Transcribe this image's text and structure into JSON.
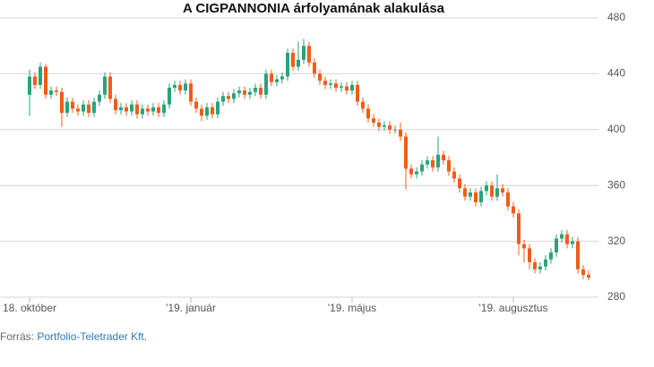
{
  "chart_data": {
    "type": "candlestick",
    "title": "A CIGPANNONIA árfolyamának alakulása",
    "xticks": [
      {
        "value": 0,
        "label": "18. október"
      },
      {
        "value": 30,
        "label": "'19. január"
      },
      {
        "value": 60,
        "label": "'19. május"
      },
      {
        "value": 90,
        "label": "'19. augusztus"
      }
    ],
    "ylim": [
      280,
      480
    ],
    "yticks": [
      280,
      320,
      360,
      400,
      440,
      480
    ],
    "grid": true,
    "up_color": "#2aa37a",
    "down_color": "#f25c19",
    "flat_color": "#888888",
    "open": [
      425,
      438,
      432,
      445,
      425,
      428,
      427,
      412,
      420,
      415,
      413,
      418,
      412,
      420,
      425,
      438,
      422,
      414,
      416,
      413,
      418,
      411,
      415,
      413,
      416,
      412,
      418,
      430,
      432,
      428,
      433,
      420,
      415,
      410,
      416,
      411,
      420,
      424,
      422,
      426,
      428,
      425,
      427,
      430,
      425,
      440,
      434,
      436,
      438,
      455,
      445,
      450,
      460,
      448,
      440,
      435,
      432,
      433,
      430,
      431,
      428,
      432,
      420,
      415,
      408,
      405,
      402,
      403,
      400,
      400,
      395,
      372,
      368,
      370,
      375,
      378,
      373,
      382,
      378,
      370,
      365,
      358,
      352,
      355,
      348,
      356,
      360,
      352,
      358,
      355,
      345,
      340,
      318,
      315,
      305,
      300,
      302,
      307,
      312,
      322,
      325,
      318,
      320,
      300,
      296
    ],
    "high": [
      443,
      441,
      448,
      447,
      431,
      431,
      430,
      423,
      423,
      418,
      421,
      421,
      423,
      428,
      441,
      441,
      425,
      419,
      419,
      421,
      421,
      418,
      418,
      419,
      419,
      421,
      433,
      435,
      435,
      436,
      436,
      423,
      418,
      419,
      419,
      423,
      427,
      427,
      429,
      431,
      431,
      430,
      433,
      433,
      443,
      443,
      439,
      441,
      458,
      458,
      463,
      465,
      463,
      451,
      443,
      438,
      436,
      436,
      434,
      434,
      435,
      435,
      423,
      418,
      411,
      408,
      406,
      406,
      403,
      405,
      398,
      375,
      373,
      378,
      381,
      381,
      395,
      385,
      381,
      373,
      368,
      361,
      358,
      358,
      359,
      363,
      363,
      368,
      361,
      358,
      348,
      343,
      321,
      318,
      308,
      305,
      310,
      315,
      325,
      328,
      328,
      323,
      323,
      303,
      299
    ],
    "low": [
      410,
      429,
      429,
      422,
      422,
      424,
      402,
      409,
      412,
      410,
      410,
      409,
      409,
      417,
      422,
      419,
      411,
      411,
      410,
      410,
      408,
      408,
      410,
      410,
      409,
      409,
      415,
      427,
      425,
      425,
      417,
      412,
      406,
      407,
      408,
      408,
      417,
      419,
      419,
      423,
      422,
      422,
      424,
      422,
      422,
      431,
      431,
      433,
      435,
      442,
      442,
      447,
      445,
      437,
      432,
      429,
      429,
      427,
      427,
      425,
      425,
      417,
      412,
      405,
      402,
      399,
      399,
      397,
      397,
      392,
      357,
      365,
      365,
      367,
      372,
      370,
      370,
      375,
      367,
      362,
      355,
      349,
      349,
      345,
      345,
      353,
      349,
      349,
      352,
      342,
      337,
      310,
      305,
      300,
      297,
      297,
      299,
      304,
      309,
      319,
      315,
      315,
      297,
      293,
      292
    ],
    "close": [
      438,
      432,
      445,
      425,
      428,
      427,
      412,
      420,
      415,
      413,
      418,
      412,
      420,
      425,
      438,
      422,
      414,
      416,
      413,
      418,
      411,
      415,
      413,
      416,
      412,
      418,
      430,
      432,
      428,
      433,
      420,
      415,
      410,
      416,
      411,
      420,
      424,
      422,
      426,
      428,
      425,
      427,
      430,
      425,
      440,
      434,
      436,
      438,
      455,
      445,
      450,
      460,
      448,
      440,
      435,
      432,
      433,
      430,
      431,
      428,
      432,
      420,
      415,
      408,
      405,
      402,
      403,
      400,
      400,
      395,
      372,
      368,
      370,
      375,
      378,
      373,
      382,
      378,
      370,
      365,
      358,
      352,
      355,
      348,
      356,
      360,
      352,
      358,
      355,
      345,
      340,
      318,
      315,
      305,
      300,
      302,
      307,
      312,
      322,
      325,
      318,
      320,
      300,
      296,
      294
    ]
  },
  "footer": {
    "label": "Forrás:",
    "source": "Portfolio-Teletrader Kft."
  }
}
